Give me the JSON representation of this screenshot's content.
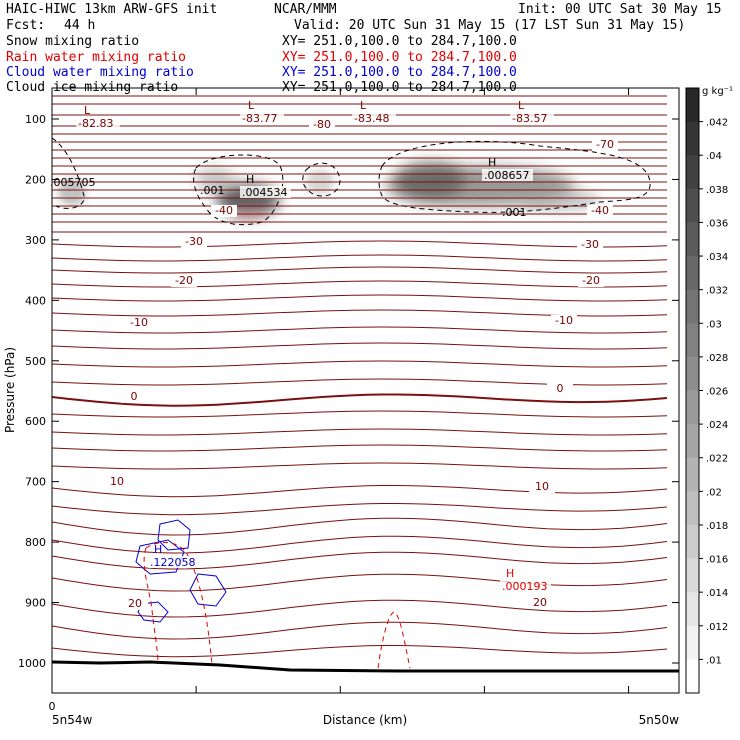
{
  "header": {
    "title": "HAIC-HIWC 13km ARW-GFS init",
    "org": "NCAR/MMM",
    "init": "Init: 00 UTC Sat 30 May 15",
    "fcst_label": "Fcst:",
    "fcst_value": "44 h",
    "valid": "Valid: 20 UTC Sun 31 May 15 (17 LST Sun 31 May 15)"
  },
  "fields": [
    {
      "name": "Snow mixing ratio",
      "color": "#000000",
      "xy": "XY= 251.0,100.0 to 284.7,100.0"
    },
    {
      "name": "Rain water mixing ratio",
      "color": "#e00000",
      "xy": "XY= 251.0,100.0 to 284.7,100.0"
    },
    {
      "name": "Cloud water mixing ratio",
      "color": "#0000d0",
      "xy": "XY= 251.0,100.0 to 284.7,100.0"
    },
    {
      "name": "Cloud ice mixing ratio",
      "color": "#000000",
      "xy": "XY= 251.0,100.0 to 284.7,100.0"
    }
  ],
  "chart_data": {
    "type": "contour",
    "ylabel": "Pressure (hPa)",
    "xlabel": "Distance (km)",
    "x_start_label": "5n54w",
    "x_end_label": "5n50w",
    "x_origin_tick": "0",
    "y_ticks": [
      100,
      200,
      300,
      400,
      500,
      600,
      700,
      800,
      900,
      1000
    ],
    "ylim": [
      1050,
      50
    ],
    "colorbar": {
      "unit": "g kg⁻¹",
      "ticks": [
        ".01",
        ".012",
        ".014",
        ".016",
        ".018",
        ".02",
        ".022",
        ".024",
        ".026",
        ".028",
        ".03",
        ".032",
        ".034",
        ".036",
        ".038",
        ".04",
        ".042"
      ]
    },
    "temperature_labels": [
      "-70",
      "-80",
      "-40",
      "-40",
      "-30",
      "-30",
      "-20",
      "-20",
      "-10",
      "-10",
      "0",
      "0",
      "10",
      "10",
      "20",
      "20"
    ],
    "extrema_labels": [
      {
        "mark": "L",
        "value": "-82.83",
        "color": "#7a0000"
      },
      {
        "mark": "L",
        "value": "-83.77",
        "color": "#7a0000"
      },
      {
        "mark": "L",
        "value": "-83.48",
        "color": "#7a0000"
      },
      {
        "mark": "L",
        "value": "-83.57",
        "color": "#7a0000"
      },
      {
        "mark": "H",
        "value": ".004534",
        "color": "#000000"
      },
      {
        "mark": "H",
        "value": ".008657",
        "color": "#000000"
      },
      {
        "mark": "H",
        "value": ".122058",
        "color": "#0000d0"
      },
      {
        "mark": "H",
        "value": ".000193",
        "color": "#e00000"
      }
    ],
    "contour_value_labels": [
      ".001",
      ".001",
      ".005705"
    ]
  }
}
